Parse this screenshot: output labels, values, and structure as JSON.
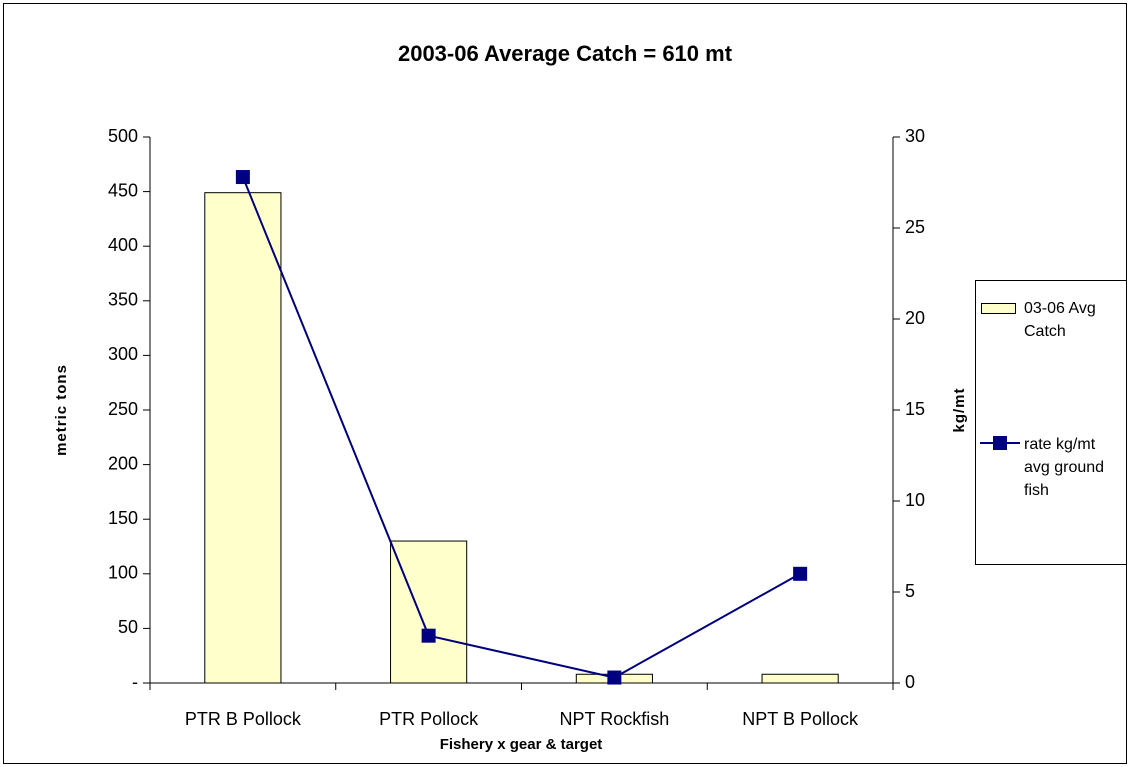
{
  "chart_data": {
    "type": "bar_line",
    "title": "2003-06 Average Catch = 610 mt",
    "x_label": "Fishery x gear & target",
    "y_label": "metric tons",
    "y2_label": "kg/mt",
    "categories": [
      "PTR B Pollock",
      "PTR Pollock",
      "NPT Rockfish",
      "NPT B Pollock"
    ],
    "series": [
      {
        "name": "03-06 Avg Catch",
        "type": "bar",
        "color": "#ffffcc",
        "values": [
          449,
          130,
          8,
          8
        ]
      },
      {
        "name": "rate kg/mt avg ground fish",
        "type": "line",
        "axis": "y2",
        "color": "#000080",
        "values": [
          27.8,
          2.6,
          0.3,
          6.0
        ]
      }
    ],
    "ylim": [
      0,
      500
    ],
    "yticks": [
      {
        "value": 0,
        "label": "-"
      },
      50,
      100,
      150,
      200,
      250,
      300,
      350,
      400,
      450,
      500
    ],
    "y2lim": [
      0,
      30
    ],
    "y2ticks": [
      0,
      5,
      10,
      15,
      20,
      25,
      30
    ],
    "grid": false
  }
}
